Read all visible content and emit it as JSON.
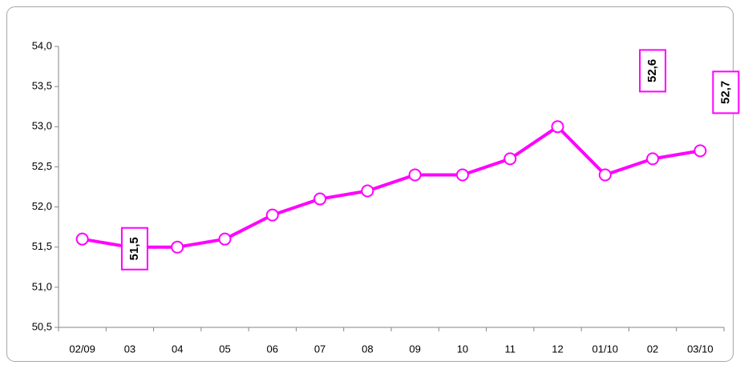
{
  "chart_data": {
    "type": "line",
    "categories": [
      "02/09",
      "03",
      "04",
      "05",
      "06",
      "07",
      "08",
      "09",
      "10",
      "11",
      "12",
      "01/10",
      "02",
      "03/10"
    ],
    "values": [
      51.6,
      51.5,
      51.5,
      51.6,
      51.9,
      52.1,
      52.2,
      52.4,
      52.4,
      52.6,
      53.0,
      52.4,
      52.6,
      52.7
    ],
    "value_labels": [
      null,
      "51,5",
      null,
      null,
      null,
      null,
      null,
      null,
      null,
      null,
      null,
      null,
      "52,6",
      "52,7"
    ],
    "color": "#ff00ff",
    "ylim": [
      50.5,
      54.0
    ],
    "yticks": [
      {
        "value": 50.5,
        "label": "50,5"
      },
      {
        "value": 51.0,
        "label": "51,0"
      },
      {
        "value": 51.5,
        "label": "51,5"
      },
      {
        "value": 52.0,
        "label": "52,0"
      },
      {
        "value": 52.5,
        "label": "52,5"
      },
      {
        "value": 53.0,
        "label": "53,0"
      },
      {
        "value": 53.5,
        "label": "53,5"
      },
      {
        "value": 54.0,
        "label": "54,0"
      }
    ],
    "grid": false
  }
}
